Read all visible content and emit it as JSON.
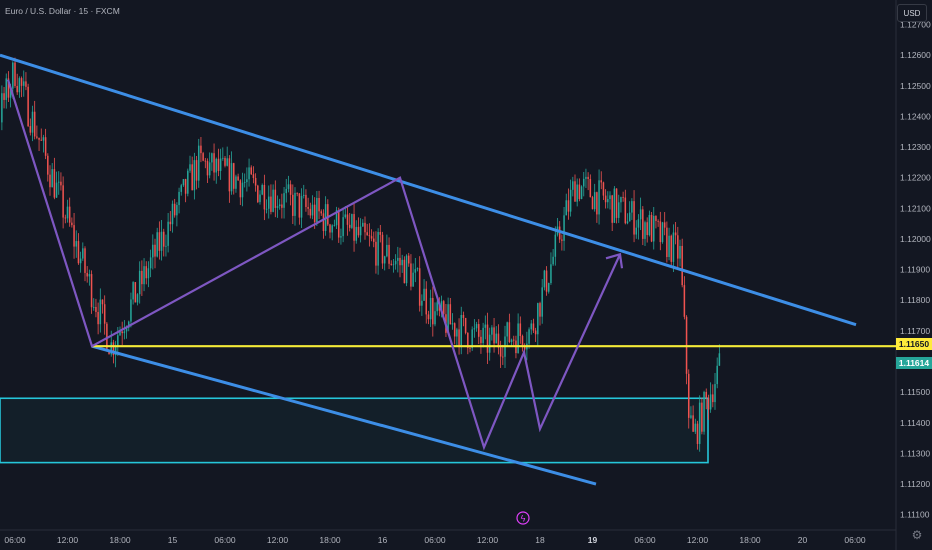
{
  "header": {
    "symbol_title": "Euro / U.S. Dollar · 15 · FXCM"
  },
  "price_axis": {
    "currency_button": "USD"
  },
  "chart_data": {
    "type": "candlestick",
    "title": "Euro / U.S. Dollar · 15 · FXCM",
    "y_ticks": [
      1.127,
      1.126,
      1.125,
      1.124,
      1.123,
      1.122,
      1.121,
      1.12,
      1.119,
      1.118,
      1.117,
      1.115,
      1.114,
      1.113,
      1.112,
      1.111
    ],
    "y_tick_labels": [
      "1.12700",
      "1.12600",
      "1.12500",
      "1.12400",
      "1.12300",
      "1.12200",
      "1.12100",
      "1.12000",
      "1.11900",
      "1.11800",
      "1.11700",
      "1.11500",
      "1.11400",
      "1.11300",
      "1.11200",
      "1.11100"
    ],
    "ylim": [
      1.1105,
      1.1278
    ],
    "x_ticks": [
      "06:00",
      "12:00",
      "18:00",
      "15",
      "06:00",
      "12:00",
      "18:00",
      "16",
      "06:00",
      "12:00",
      "18",
      "19",
      "06:00",
      "12:00",
      "18:00",
      "20",
      "06:00"
    ],
    "x_tick_bold": [
      false,
      false,
      false,
      false,
      false,
      false,
      false,
      false,
      false,
      false,
      false,
      true,
      false,
      false,
      false,
      false,
      false
    ],
    "price_labels": [
      {
        "value": 1.1165,
        "text": "1.11650",
        "bg": "#ffeb3b",
        "fg": "#131722"
      },
      {
        "value": 1.11614,
        "text": "1.11614",
        "bg": "#26a69a",
        "fg": "#ffffff"
      }
    ],
    "key_level": {
      "price": 1.1165,
      "color": "#f5eb38"
    },
    "demand_zone": {
      "top": 1.1148,
      "bottom": 1.1127,
      "color": "#26c6da"
    },
    "channel": {
      "upper": [
        [
          1.126,
          "06:00"
        ],
        [
          1.1172,
          "20 06:00"
        ]
      ],
      "lower": [
        [
          1.1165,
          "18:00"
        ],
        [
          1.112,
          "19"
        ]
      ],
      "color": "#3d8ee6"
    },
    "pattern_color": "#7e57c2",
    "candle_colors": {
      "up": "#26a69a",
      "down": "#ef5350"
    },
    "anchor_points": [
      {
        "time": "16:45 (14th)",
        "price": 1.12
      },
      {
        "time": "06:00 (15th)",
        "price": 1.1255
      },
      {
        "time": "17:00 (15th)",
        "price": 1.1165
      },
      {
        "time": "03:00 (16th)",
        "price": 1.1225
      },
      {
        "time": "19:00 (16th)",
        "price": 1.1205
      },
      {
        "time": "03:00 (17th)",
        "price": 1.119
      },
      {
        "time": "06:00 (17th)",
        "price": 1.1175
      },
      {
        "time": "12:00 (17th)",
        "price": 1.1165
      },
      {
        "time": "17:00 (17th)",
        "price": 1.117
      },
      {
        "time": "22:00 (17th)",
        "price": 1.1218
      },
      {
        "time": "06:00 (18th)",
        "price": 1.1205
      },
      {
        "time": "10:00 (18th)",
        "price": 1.1195
      },
      {
        "time": "11:00 (18th)",
        "price": 1.1145
      },
      {
        "time": "11:30 (18th)",
        "price": 1.1135
      },
      {
        "time": "14:30 (18th)",
        "price": 1.1158
      }
    ],
    "forecast_path": [
      1.1165,
      1.1225,
      1.1132,
      1.1163,
      1.1138,
      1.1195
    ]
  }
}
